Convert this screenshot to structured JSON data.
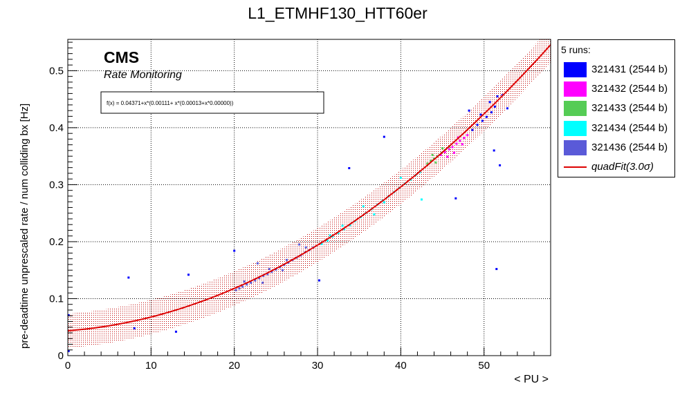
{
  "chart_data": {
    "type": "scatter",
    "title": "L1_ETMHF130_HTT60er",
    "xlabel": "< PU >",
    "ylabel": "pre-deadtime unprescaled rate / num colliding bx [Hz]",
    "xlim": [
      0,
      58
    ],
    "ylim": [
      0,
      0.555
    ],
    "xticks": [
      0,
      10,
      20,
      30,
      40,
      50
    ],
    "yticks": [
      0,
      0.1,
      0.2,
      0.3,
      0.4,
      0.5
    ],
    "ytick_labels": [
      "0",
      "0.1",
      "0.2",
      "0.3",
      "0.4",
      "0.5"
    ],
    "grid": true,
    "legend_position": "outside-right-top",
    "annotations": {
      "cms": "CMS",
      "subtitle": "Rate Monitoring",
      "fit_formula": "f(x) = 0.04371+x*(0.00111+ x*(0.00013+x*0.00000))"
    },
    "legend": {
      "title": "5 runs:",
      "entries": [
        {
          "label": "321431 (2544 b)",
          "color": "#0000ff"
        },
        {
          "label": "321432 (2544 b)",
          "color": "#ff00ff"
        },
        {
          "label": "321433 (2544 b)",
          "color": "#55cc55"
        },
        {
          "label": "321434 (2544 b)",
          "color": "#00ffff"
        },
        {
          "label": "321436 (2544 b)",
          "color": "#5a5ad8"
        }
      ],
      "fit_label": "quadFit(3.0σ)",
      "fit_color": "#dd0000"
    },
    "fit": {
      "c0": 0.04371,
      "c1": 0.00111,
      "c2": 0.00013,
      "band_halfwidth": 0.03,
      "xrange": [
        0,
        58
      ],
      "color": "#dd0000"
    },
    "series": [
      {
        "name": "321431 (2544 b)",
        "color": "#0000ff",
        "points": [
          [
            0.1,
            0.071
          ],
          [
            0.1,
            0.008
          ],
          [
            7.3,
            0.137
          ],
          [
            8.0,
            0.048
          ],
          [
            13.0,
            0.042
          ],
          [
            14.5,
            0.142
          ],
          [
            20.0,
            0.184
          ],
          [
            30.2,
            0.132
          ],
          [
            33.8,
            0.329
          ],
          [
            38.0,
            0.384
          ],
          [
            46.6,
            0.276
          ],
          [
            51.2,
            0.36
          ],
          [
            51.5,
            0.152
          ],
          [
            51.9,
            0.334
          ],
          [
            52.2,
            0.457
          ],
          [
            52.8,
            0.434
          ],
          [
            48.6,
            0.396
          ],
          [
            49.2,
            0.405
          ],
          [
            49.8,
            0.412
          ],
          [
            50.3,
            0.419
          ],
          [
            50.9,
            0.427
          ],
          [
            51.3,
            0.437
          ],
          [
            49.6,
            0.423
          ],
          [
            50.7,
            0.445
          ],
          [
            48.2,
            0.43
          ],
          [
            51.6,
            0.455
          ]
        ]
      },
      {
        "name": "321432 (2544 b)",
        "color": "#ff00ff",
        "points": [
          [
            44.8,
            0.352
          ],
          [
            45.3,
            0.357
          ],
          [
            45.8,
            0.362
          ],
          [
            46.2,
            0.366
          ],
          [
            46.7,
            0.372
          ],
          [
            47.1,
            0.377
          ],
          [
            47.6,
            0.382
          ],
          [
            48.0,
            0.387
          ],
          [
            46.4,
            0.356
          ],
          [
            45.6,
            0.349
          ],
          [
            47.4,
            0.371
          ],
          [
            46.9,
            0.383
          ]
        ]
      },
      {
        "name": "321433 (2544 b)",
        "color": "#55cc55",
        "points": [
          [
            43.2,
            0.337
          ],
          [
            43.6,
            0.342
          ],
          [
            44.0,
            0.346
          ],
          [
            44.4,
            0.35
          ],
          [
            44.9,
            0.356
          ],
          [
            45.3,
            0.361
          ],
          [
            45.8,
            0.366
          ],
          [
            44.2,
            0.339
          ],
          [
            43.8,
            0.352
          ],
          [
            45.0,
            0.364
          ]
        ]
      },
      {
        "name": "321434 (2544 b)",
        "color": "#00ffff",
        "points": [
          [
            30.5,
            0.196
          ],
          [
            31.2,
            0.202
          ],
          [
            31.8,
            0.209
          ],
          [
            32.5,
            0.215
          ],
          [
            33.2,
            0.222
          ],
          [
            33.9,
            0.229
          ],
          [
            34.5,
            0.236
          ],
          [
            35.2,
            0.243
          ],
          [
            35.8,
            0.25
          ],
          [
            36.5,
            0.257
          ],
          [
            37.2,
            0.265
          ],
          [
            37.8,
            0.272
          ],
          [
            38.5,
            0.279
          ],
          [
            39.2,
            0.287
          ],
          [
            39.8,
            0.294
          ],
          [
            40.5,
            0.302
          ],
          [
            41.2,
            0.309
          ],
          [
            41.8,
            0.317
          ],
          [
            42.3,
            0.322
          ],
          [
            42.5,
            0.274
          ],
          [
            33.0,
            0.228
          ],
          [
            35.5,
            0.262
          ],
          [
            38.0,
            0.269
          ],
          [
            40.0,
            0.312
          ],
          [
            31.5,
            0.211
          ],
          [
            36.8,
            0.248
          ]
        ]
      },
      {
        "name": "321436 (2544 b)",
        "color": "#5a5ad8",
        "points": [
          [
            20.2,
            0.115
          ],
          [
            20.6,
            0.118
          ],
          [
            21.0,
            0.121
          ],
          [
            21.5,
            0.125
          ],
          [
            22.0,
            0.128
          ],
          [
            22.5,
            0.132
          ],
          [
            23.0,
            0.136
          ],
          [
            23.5,
            0.14
          ],
          [
            24.0,
            0.143
          ],
          [
            24.5,
            0.147
          ],
          [
            25.0,
            0.151
          ],
          [
            25.5,
            0.155
          ],
          [
            26.0,
            0.159
          ],
          [
            26.5,
            0.163
          ],
          [
            27.0,
            0.168
          ],
          [
            27.5,
            0.172
          ],
          [
            28.0,
            0.176
          ],
          [
            28.5,
            0.181
          ],
          [
            29.0,
            0.185
          ],
          [
            29.5,
            0.19
          ],
          [
            22.8,
            0.162
          ],
          [
            25.8,
            0.15
          ],
          [
            27.8,
            0.195
          ],
          [
            28.6,
            0.19
          ],
          [
            21.2,
            0.13
          ],
          [
            24.2,
            0.152
          ],
          [
            26.3,
            0.168
          ],
          [
            23.4,
            0.128
          ]
        ]
      }
    ]
  }
}
